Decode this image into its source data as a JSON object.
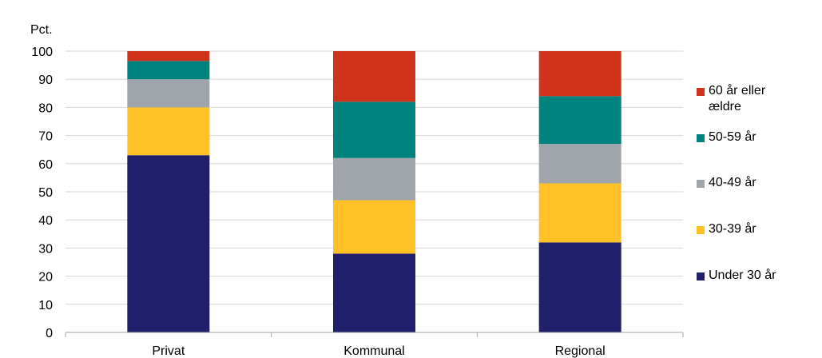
{
  "chart_data": {
    "type": "bar",
    "stacked": true,
    "title": "",
    "ylabel": "Pct.",
    "xlabel": "",
    "ylim": [
      0,
      100
    ],
    "yticks": [
      0,
      10,
      20,
      30,
      40,
      50,
      60,
      70,
      80,
      90,
      100
    ],
    "grid": true,
    "legend_position": "right",
    "categories": [
      "Privat",
      "Kommunal",
      "Regional"
    ],
    "series": [
      {
        "name": "Under 30 år",
        "color": "#1f1f6b",
        "values": [
          63,
          28,
          32
        ]
      },
      {
        "name": "30-39 år",
        "color": "#ffc125",
        "values": [
          17,
          19,
          21
        ]
      },
      {
        "name": "40-49 år",
        "color": "#a0a5ab",
        "values": [
          10,
          15,
          14
        ]
      },
      {
        "name": "50-59 år",
        "color": "#00827f",
        "values": [
          6.5,
          20,
          17
        ]
      },
      {
        "name": "60 år eller ældre",
        "color": "#cf3319",
        "values": [
          3.5,
          18,
          16
        ]
      }
    ]
  }
}
